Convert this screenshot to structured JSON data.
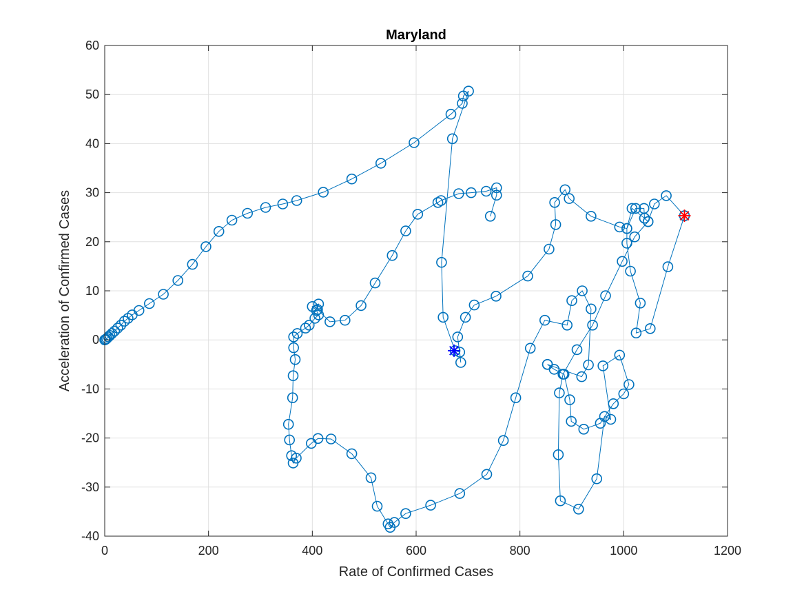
{
  "chart_data": {
    "type": "line",
    "title": "Maryland",
    "xlabel": "Rate of Confirmed Cases",
    "ylabel": "Acceleration of Confirmed Cases",
    "xlim": [
      0,
      1200
    ],
    "ylim": [
      -40,
      60
    ],
    "xticks": [
      0,
      200,
      400,
      600,
      800,
      1000,
      1200
    ],
    "yticks": [
      -40,
      -30,
      -20,
      -10,
      0,
      10,
      20,
      30,
      40,
      50,
      60
    ],
    "grid": true,
    "legend": "none",
    "colors": {
      "series": "#0072BD",
      "start_marker": "#0000FF",
      "end_marker": "#FF0000"
    },
    "series": [
      {
        "marker": "circle",
        "points": [
          [
            0,
            0
          ],
          [
            2,
            0.1
          ],
          [
            4,
            0.3
          ],
          [
            7,
            0.6
          ],
          [
            10,
            0.9
          ],
          [
            14,
            1.3
          ],
          [
            19,
            1.8
          ],
          [
            25,
            2.4
          ],
          [
            31,
            3.0
          ],
          [
            38,
            3.8
          ],
          [
            45,
            4.4
          ],
          [
            53,
            5.1
          ],
          [
            66,
            6.0
          ],
          [
            86,
            7.4
          ],
          [
            113,
            9.3
          ],
          [
            141,
            12.1
          ],
          [
            169,
            15.4
          ],
          [
            195,
            19.0
          ],
          [
            220,
            22.1
          ],
          [
            245,
            24.4
          ],
          [
            275,
            25.8
          ],
          [
            310,
            27.0
          ],
          [
            343,
            27.7
          ],
          [
            370,
            28.4
          ],
          [
            421,
            30.1
          ],
          [
            476,
            32.8
          ],
          [
            532,
            36.0
          ],
          [
            596,
            40.2
          ],
          [
            667,
            46.0
          ],
          [
            689,
            48.2
          ],
          [
            691,
            49.7
          ],
          [
            701,
            50.7
          ],
          [
            670,
            41.0
          ],
          [
            649,
            15.8
          ],
          [
            652,
            4.6
          ],
          [
            675,
            -2.2
          ],
          [
            684,
            -2.5
          ],
          [
            686,
            -4.6
          ],
          [
            680,
            0.6
          ],
          [
            695,
            4.6
          ],
          [
            712,
            7.1
          ],
          [
            754,
            8.9
          ],
          [
            815,
            13.0
          ],
          [
            856,
            18.5
          ],
          [
            869,
            23.5
          ],
          [
            867,
            28.0
          ],
          [
            887,
            30.6
          ],
          [
            895,
            28.8
          ],
          [
            937,
            25.2
          ],
          [
            992,
            23.0
          ],
          [
            1006,
            22.7
          ],
          [
            1023,
            26.8
          ],
          [
            1039,
            26.8
          ],
          [
            1040,
            24.8
          ],
          [
            1047,
            24.1
          ],
          [
            1059,
            27.7
          ],
          [
            1082,
            29.4
          ],
          [
            1117,
            25.3
          ]
        ]
      },
      {
        "marker": "circle",
        "points": [
          [
            1117,
            25.3
          ],
          [
            1085,
            14.9
          ],
          [
            1051,
            2.3
          ],
          [
            1024,
            1.4
          ],
          [
            1032,
            7.5
          ],
          [
            1013,
            14.0
          ],
          [
            1006,
            19.7
          ],
          [
            1006,
            22.7
          ],
          [
            1016,
            26.8
          ],
          [
            1040,
            24.8
          ],
          [
            1047,
            24.1
          ],
          [
            1021,
            21.0
          ],
          [
            997,
            16.0
          ],
          [
            965,
            9.0
          ],
          [
            940,
            3.0
          ],
          [
            910,
            -2.0
          ],
          [
            883,
            -7.0
          ],
          [
            876,
            -10.8
          ],
          [
            874,
            -23.4
          ],
          [
            878,
            -32.8
          ],
          [
            913,
            -34.5
          ],
          [
            948,
            -28.3
          ],
          [
            963,
            -15.6
          ],
          [
            975,
            -16.2
          ],
          [
            960,
            -5.3
          ],
          [
            992,
            -3.1
          ],
          [
            1010,
            -9.1
          ],
          [
            1000,
            -11.0
          ],
          [
            980,
            -13.0
          ],
          [
            955,
            -17.0
          ],
          [
            923,
            -18.2
          ],
          [
            899,
            -16.6
          ],
          [
            896,
            -12.2
          ],
          [
            885,
            -7.0
          ],
          [
            866,
            -6.0
          ],
          [
            853,
            -5.0
          ]
        ]
      },
      {
        "marker": "circle",
        "points": [
          [
            853,
            -5.0
          ],
          [
            919,
            -7.5
          ],
          [
            932,
            -5.1
          ],
          [
            937,
            6.3
          ],
          [
            920,
            10.0
          ],
          [
            900,
            8.0
          ],
          [
            891,
            3.0
          ],
          [
            848,
            4.0
          ],
          [
            820,
            -1.7
          ],
          [
            792,
            -11.8
          ],
          [
            768,
            -20.5
          ],
          [
            736,
            -27.4
          ],
          [
            684,
            -31.3
          ],
          [
            628,
            -33.7
          ],
          [
            580,
            -35.4
          ],
          [
            558,
            -37.2
          ],
          [
            550,
            -38.2
          ],
          [
            546,
            -37.5
          ],
          [
            525,
            -33.9
          ],
          [
            513,
            -28.1
          ],
          [
            476,
            -23.2
          ],
          [
            436,
            -20.2
          ],
          [
            411,
            -20.1
          ],
          [
            398,
            -21.1
          ],
          [
            369,
            -24.1
          ],
          [
            363,
            -25.1
          ],
          [
            360,
            -23.6
          ],
          [
            356,
            -20.4
          ],
          [
            354,
            -17.2
          ],
          [
            362,
            -11.8
          ],
          [
            363,
            -7.3
          ],
          [
            367,
            -4.0
          ],
          [
            364,
            -1.6
          ],
          [
            364,
            0.6
          ],
          [
            371,
            1.3
          ],
          [
            387,
            2.4
          ],
          [
            394,
            3.0
          ],
          [
            405,
            4.4
          ],
          [
            412,
            5.1
          ],
          [
            408,
            6.0
          ],
          [
            400,
            6.8
          ],
          [
            412,
            7.3
          ],
          [
            410,
            6.2
          ],
          [
            434,
            3.7
          ],
          [
            463,
            4.0
          ],
          [
            494,
            7.0
          ],
          [
            521,
            11.6
          ],
          [
            554,
            17.2
          ],
          [
            580,
            22.2
          ],
          [
            603,
            25.6
          ],
          [
            642,
            28.0
          ],
          [
            648,
            28.4
          ],
          [
            682,
            29.8
          ],
          [
            706,
            30.0
          ],
          [
            735,
            30.3
          ],
          [
            755,
            31.0
          ],
          [
            755,
            29.5
          ],
          [
            743,
            25.2
          ]
        ]
      }
    ],
    "annotations": [
      {
        "marker": "asterisk-x",
        "color": "blue",
        "x": 673,
        "y": -2.2
      },
      {
        "marker": "asterisk-x",
        "color": "red",
        "x": 1117,
        "y": 25.3
      }
    ]
  }
}
